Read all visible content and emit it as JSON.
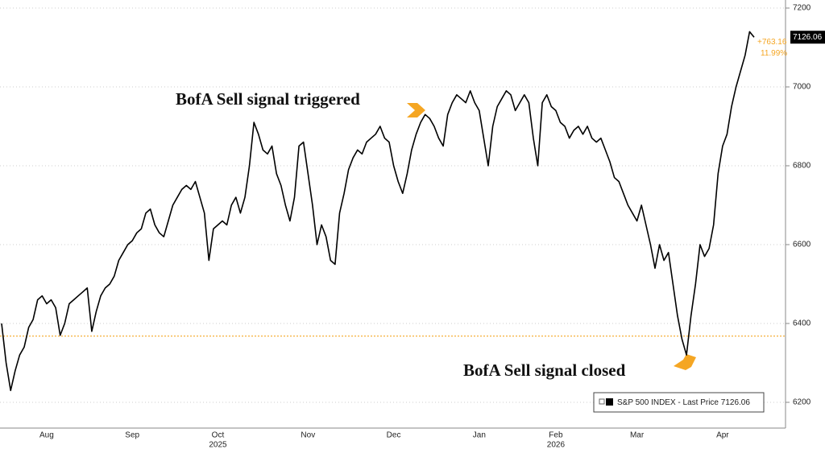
{
  "chart_data": {
    "type": "line",
    "categories": [
      null,
      null,
      null,
      null,
      null,
      null,
      null,
      null,
      null,
      null,
      "Aug",
      null,
      null,
      null,
      null,
      null,
      null,
      null,
      null,
      null,
      null,
      null,
      null,
      null,
      null,
      null,
      null,
      null,
      null,
      "Sep",
      null,
      null,
      null,
      null,
      null,
      null,
      null,
      null,
      null,
      null,
      null,
      null,
      null,
      null,
      null,
      null,
      null,
      null,
      "Oct",
      null,
      null,
      null,
      null,
      null,
      null,
      null,
      null,
      null,
      null,
      null,
      null,
      null,
      null,
      null,
      null,
      null,
      null,
      null,
      "Nov",
      null,
      null,
      null,
      null,
      null,
      null,
      null,
      null,
      null,
      null,
      null,
      null,
      null,
      null,
      null,
      null,
      null,
      null,
      "Dec",
      null,
      null,
      null,
      null,
      null,
      null,
      null,
      null,
      null,
      null,
      null,
      null,
      null,
      null,
      null,
      null,
      null,
      null,
      "Jan",
      null,
      null,
      null,
      null,
      null,
      null,
      null,
      null,
      null,
      null,
      null,
      null,
      null,
      null,
      null,
      null,
      "Feb",
      null,
      null,
      null,
      null,
      null,
      null,
      null,
      null,
      null,
      null,
      null,
      null,
      null,
      null,
      null,
      null,
      null,
      "Mar",
      null,
      null,
      null,
      null,
      null,
      null,
      null,
      null,
      null,
      null,
      null,
      null,
      null,
      null,
      null,
      null,
      null,
      null,
      "Apr",
      null,
      null,
      null,
      null,
      null,
      null,
      null
    ],
    "categories_year": [
      null,
      null,
      null,
      null,
      null,
      null,
      null,
      null,
      null,
      null,
      null,
      null,
      null,
      null,
      null,
      null,
      null,
      null,
      null,
      null,
      null,
      null,
      null,
      null,
      null,
      null,
      null,
      null,
      null,
      null,
      null,
      null,
      null,
      null,
      null,
      null,
      null,
      null,
      null,
      null,
      null,
      null,
      null,
      null,
      null,
      null,
      null,
      null,
      "2025",
      null,
      null,
      null,
      null,
      null,
      null,
      null,
      null,
      null,
      null,
      null,
      null,
      null,
      null,
      null,
      null,
      null,
      null,
      null,
      null,
      null,
      null,
      null,
      null,
      null,
      null,
      null,
      null,
      null,
      null,
      null,
      null,
      null,
      null,
      null,
      null,
      null,
      null,
      null,
      null,
      null,
      null,
      null,
      null,
      null,
      null,
      null,
      null,
      null,
      null,
      null,
      null,
      null,
      null,
      null,
      null,
      null,
      null,
      null,
      null,
      null,
      null,
      null,
      null,
      null,
      null,
      null,
      null,
      null,
      null,
      null,
      null,
      null,
      null,
      "2026",
      null,
      null,
      null,
      null,
      null,
      null,
      null,
      null,
      null,
      null,
      null,
      null,
      null,
      null,
      null,
      null,
      null,
      null,
      null,
      null,
      null,
      null,
      null,
      null,
      null,
      null,
      null,
      null,
      null,
      null,
      null,
      null,
      null,
      null,
      null,
      null,
      null,
      null,
      null,
      null,
      null,
      null,
      null,
      null
    ],
    "series": [
      {
        "name": "S&P 500 INDEX - Last Price",
        "color": "#000000",
        "values": [
          6400,
          6300,
          6230,
          6280,
          6320,
          6340,
          6390,
          6410,
          6460,
          6470,
          6450,
          6460,
          6440,
          6370,
          6400,
          6450,
          6460,
          6470,
          6480,
          6490,
          6380,
          6430,
          6470,
          6490,
          6500,
          6520,
          6560,
          6580,
          6600,
          6610,
          6630,
          6640,
          6680,
          6690,
          6650,
          6630,
          6620,
          6660,
          6700,
          6720,
          6740,
          6750,
          6740,
          6760,
          6720,
          6680,
          6560,
          6640,
          6650,
          6660,
          6650,
          6700,
          6720,
          6680,
          6720,
          6800,
          6910,
          6880,
          6840,
          6830,
          6850,
          6780,
          6750,
          6700,
          6660,
          6720,
          6850,
          6860,
          6780,
          6700,
          6600,
          6650,
          6620,
          6560,
          6550,
          6680,
          6730,
          6790,
          6820,
          6840,
          6830,
          6860,
          6870,
          6880,
          6900,
          6870,
          6860,
          6800,
          6760,
          6730,
          6780,
          6840,
          6880,
          6910,
          6930,
          6920,
          6900,
          6870,
          6850,
          6930,
          6960,
          6980,
          6970,
          6960,
          6990,
          6960,
          6940,
          6870,
          6800,
          6900,
          6950,
          6970,
          6990,
          6980,
          6940,
          6960,
          6980,
          6960,
          6870,
          6800,
          6960,
          6980,
          6950,
          6940,
          6910,
          6900,
          6870,
          6890,
          6900,
          6880,
          6900,
          6870,
          6860,
          6870,
          6840,
          6810,
          6770,
          6760,
          6730,
          6700,
          6680,
          6660,
          6700,
          6650,
          6600,
          6540,
          6600,
          6560,
          6580,
          6500,
          6420,
          6360,
          6320,
          6420,
          6500,
          6600,
          6570,
          6590,
          6650,
          6780,
          6850,
          6880,
          6950,
          7000,
          7040,
          7080,
          7140,
          7126.06
        ]
      }
    ],
    "ylim": [
      6200,
      7200
    ],
    "yticks": [
      6200,
      6400,
      6600,
      6800,
      7000,
      7200
    ],
    "grid": true,
    "reference_line": {
      "value": 6368,
      "color": "#f5a623"
    },
    "change": {
      "value": 763.16,
      "label": "+763.16"
    },
    "change_pct": {
      "value": 11.99,
      "label": "11.99%"
    },
    "annotations": [
      "BofA Sell signal triggered",
      "BofA Sell signal closed"
    ],
    "legend": "bottom-right"
  }
}
